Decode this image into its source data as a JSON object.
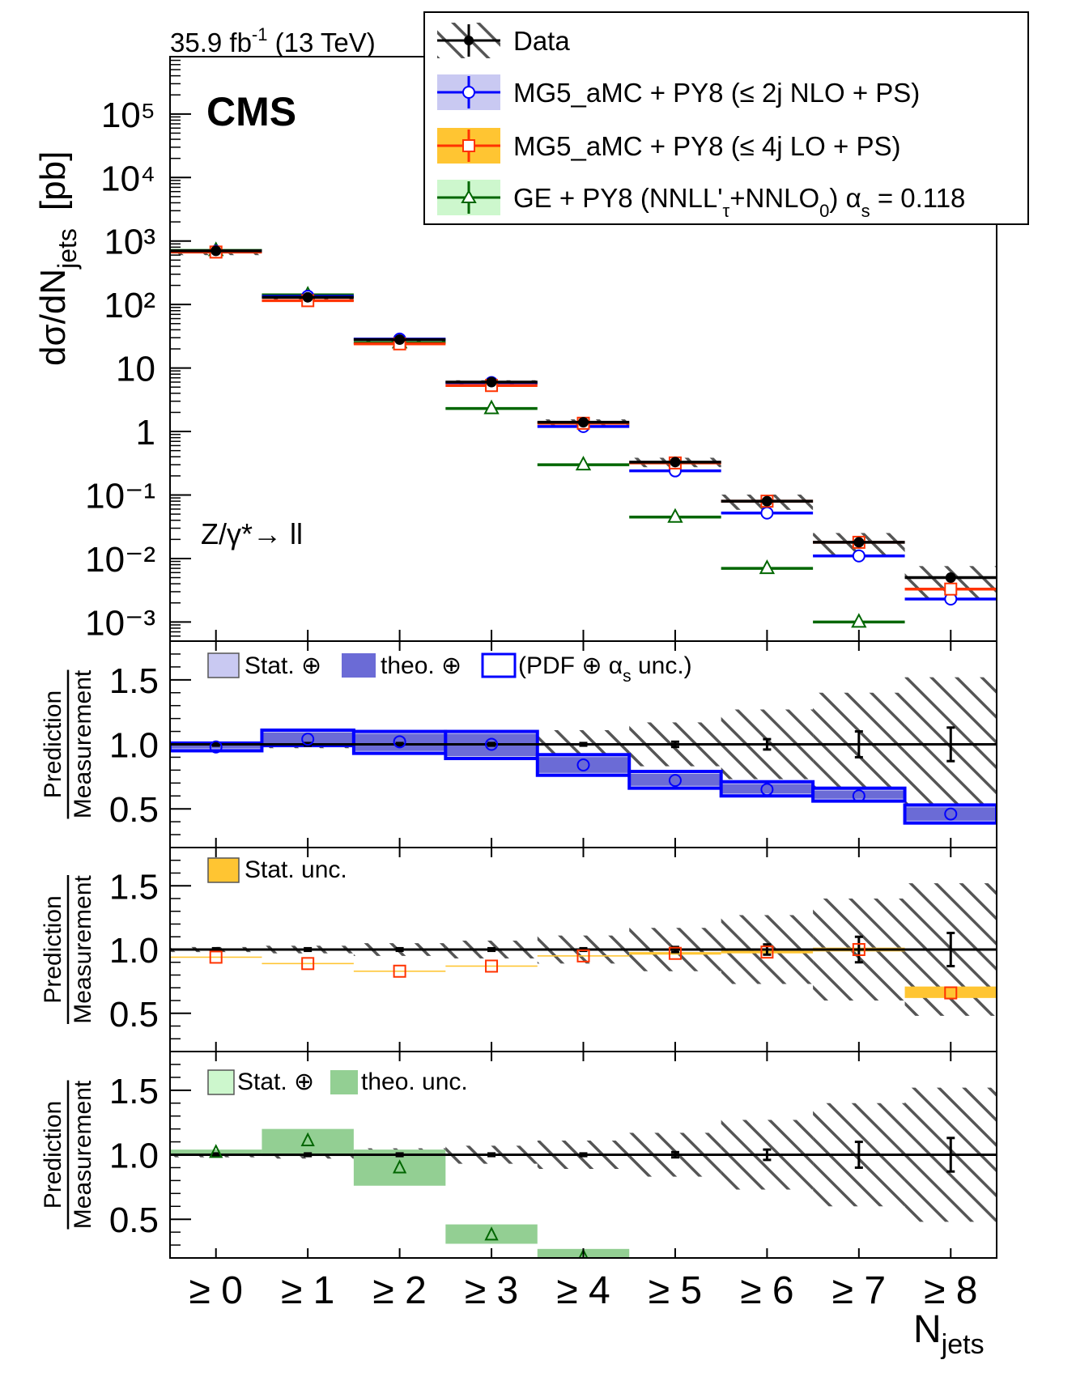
{
  "header": {
    "lumi_value": "35.9 fb",
    "lumi_exp": "-1",
    "energy": " (13 TeV)",
    "experiment": "CMS",
    "process": "Z/γ*→ ll"
  },
  "legend": {
    "data": "Data",
    "mg_nlo": "MG5_aMC + PY8 (≤ 2j NLO + PS)",
    "mg_lo": "MG5_aMC + PY8 (≤ 4j LO + PS)",
    "ge_a": "GE + PY8 (NNLL'",
    "ge_sub1": "τ",
    "ge_b": "+NNLO",
    "ge_sub2": "0",
    "ge_c": ") α",
    "ge_sub3": "s",
    "ge_d": " = 0.118"
  },
  "axes": {
    "ylabel_main": "dσ/dN",
    "ylabel_main_sub": "jets",
    "ylabel_main_unit": "[pb]",
    "ratio_num": "Prediction",
    "ratio_den": "Measurement",
    "xlabel": "N",
    "xlabel_sub": "jets",
    "main_ticks": [
      "10⁻³",
      "10⁻²",
      "10⁻¹",
      "1",
      "10",
      "10²",
      "10³",
      "10⁴",
      "10⁵"
    ],
    "ratio_ticks": [
      "0.5",
      "1.0",
      "1.5"
    ]
  },
  "ratio_legends": {
    "nlo": {
      "a": "Stat. ⊕",
      "b": "theo. ⊕",
      "c": "(PDF ⊕ α",
      "c_sub": "s",
      "d": " unc.)"
    },
    "lo": {
      "a": "Stat. unc."
    },
    "ge": {
      "a": "Stat. ⊕",
      "b": "theo. unc."
    }
  },
  "colors": {
    "data": "#000000",
    "mg_nlo": "#0000ff",
    "mg_nlo_band": "#c9c9f2",
    "mg_nlo_theo": "#6b6bd6",
    "mg_lo": "#ff3300",
    "mg_lo_band": "#ffc532",
    "ge": "#006600",
    "ge_band": "#cdf7cd",
    "ge_theo": "#93cf93",
    "hatch": "#555555"
  },
  "chart_data": {
    "type": "bar",
    "categories": [
      "≥ 0",
      "≥ 1",
      "≥ 2",
      "≥ 3",
      "≥ 4",
      "≥ 5",
      "≥ 6",
      "≥ 7",
      "≥ 8"
    ],
    "main": {
      "ylog": true,
      "ylim": [
        0.0005,
        800000
      ],
      "series": [
        {
          "name": "Data",
          "values": [
            700,
            130,
            28,
            6.0,
            1.4,
            0.33,
            0.08,
            0.018,
            0.005
          ]
        },
        {
          "name": "MG5_aMC + PY8 (≤ 2j NLO + PS)",
          "values": [
            690,
            135,
            28.5,
            5.9,
            1.2,
            0.24,
            0.052,
            0.011,
            0.0023
          ]
        },
        {
          "name": "MG5_aMC + PY8 (≤ 4j LO + PS)",
          "values": [
            670,
            115,
            24,
            5.3,
            1.35,
            0.32,
            0.08,
            0.018,
            0.0033
          ]
        },
        {
          "name": "GE + PY8 (NNLL'τ+NNLO0) αs = 0.118",
          "values": [
            710,
            142,
            25,
            2.3,
            0.3,
            0.045,
            0.007,
            0.001,
            null
          ]
        }
      ]
    },
    "ratios": [
      {
        "name": "MG5_aMC + PY8 (≤ 2j NLO + PS)",
        "ylim": [
          0.2,
          1.8
        ],
        "values": [
          0.98,
          1.04,
          1.02,
          1.0,
          0.84,
          0.72,
          0.65,
          0.6,
          0.46
        ],
        "band_low": [
          0.95,
          0.99,
          0.93,
          0.89,
          0.76,
          0.66,
          0.6,
          0.56,
          0.39
        ],
        "band_high": [
          1.01,
          1.11,
          1.1,
          1.1,
          0.92,
          0.79,
          0.71,
          0.66,
          0.53
        ]
      },
      {
        "name": "MG5_aMC + PY8 (≤ 4j LO + PS)",
        "ylim": [
          0.2,
          1.8
        ],
        "values": [
          0.94,
          0.89,
          0.83,
          0.87,
          0.95,
          0.97,
          0.98,
          1.0,
          0.66
        ],
        "band_low": [
          0.935,
          0.885,
          0.825,
          0.865,
          0.945,
          0.96,
          0.97,
          0.985,
          0.62
        ],
        "band_high": [
          0.945,
          0.895,
          0.835,
          0.875,
          0.955,
          0.98,
          0.99,
          1.015,
          0.71
        ]
      },
      {
        "name": "GE + PY8 (NNLL'τ+NNLO0) αs = 0.118",
        "ylim": [
          0.2,
          1.8
        ],
        "values": [
          1.02,
          1.11,
          0.9,
          0.38,
          0.21,
          null,
          null,
          null,
          null
        ],
        "band_low": [
          1.0,
          0.99,
          0.76,
          0.31,
          0.2,
          null,
          null,
          null,
          null
        ],
        "band_high": [
          1.04,
          1.2,
          1.04,
          0.46,
          0.27,
          null,
          null,
          null,
          null
        ]
      }
    ],
    "data_relative_uncertainty": [
      0.01,
      0.01,
      0.01,
      0.01,
      0.01,
      0.02,
      0.04,
      0.1,
      0.13
    ],
    "data_total_band": [
      0.02,
      0.03,
      0.05,
      0.07,
      0.11,
      0.17,
      0.27,
      0.4,
      0.52
    ]
  }
}
